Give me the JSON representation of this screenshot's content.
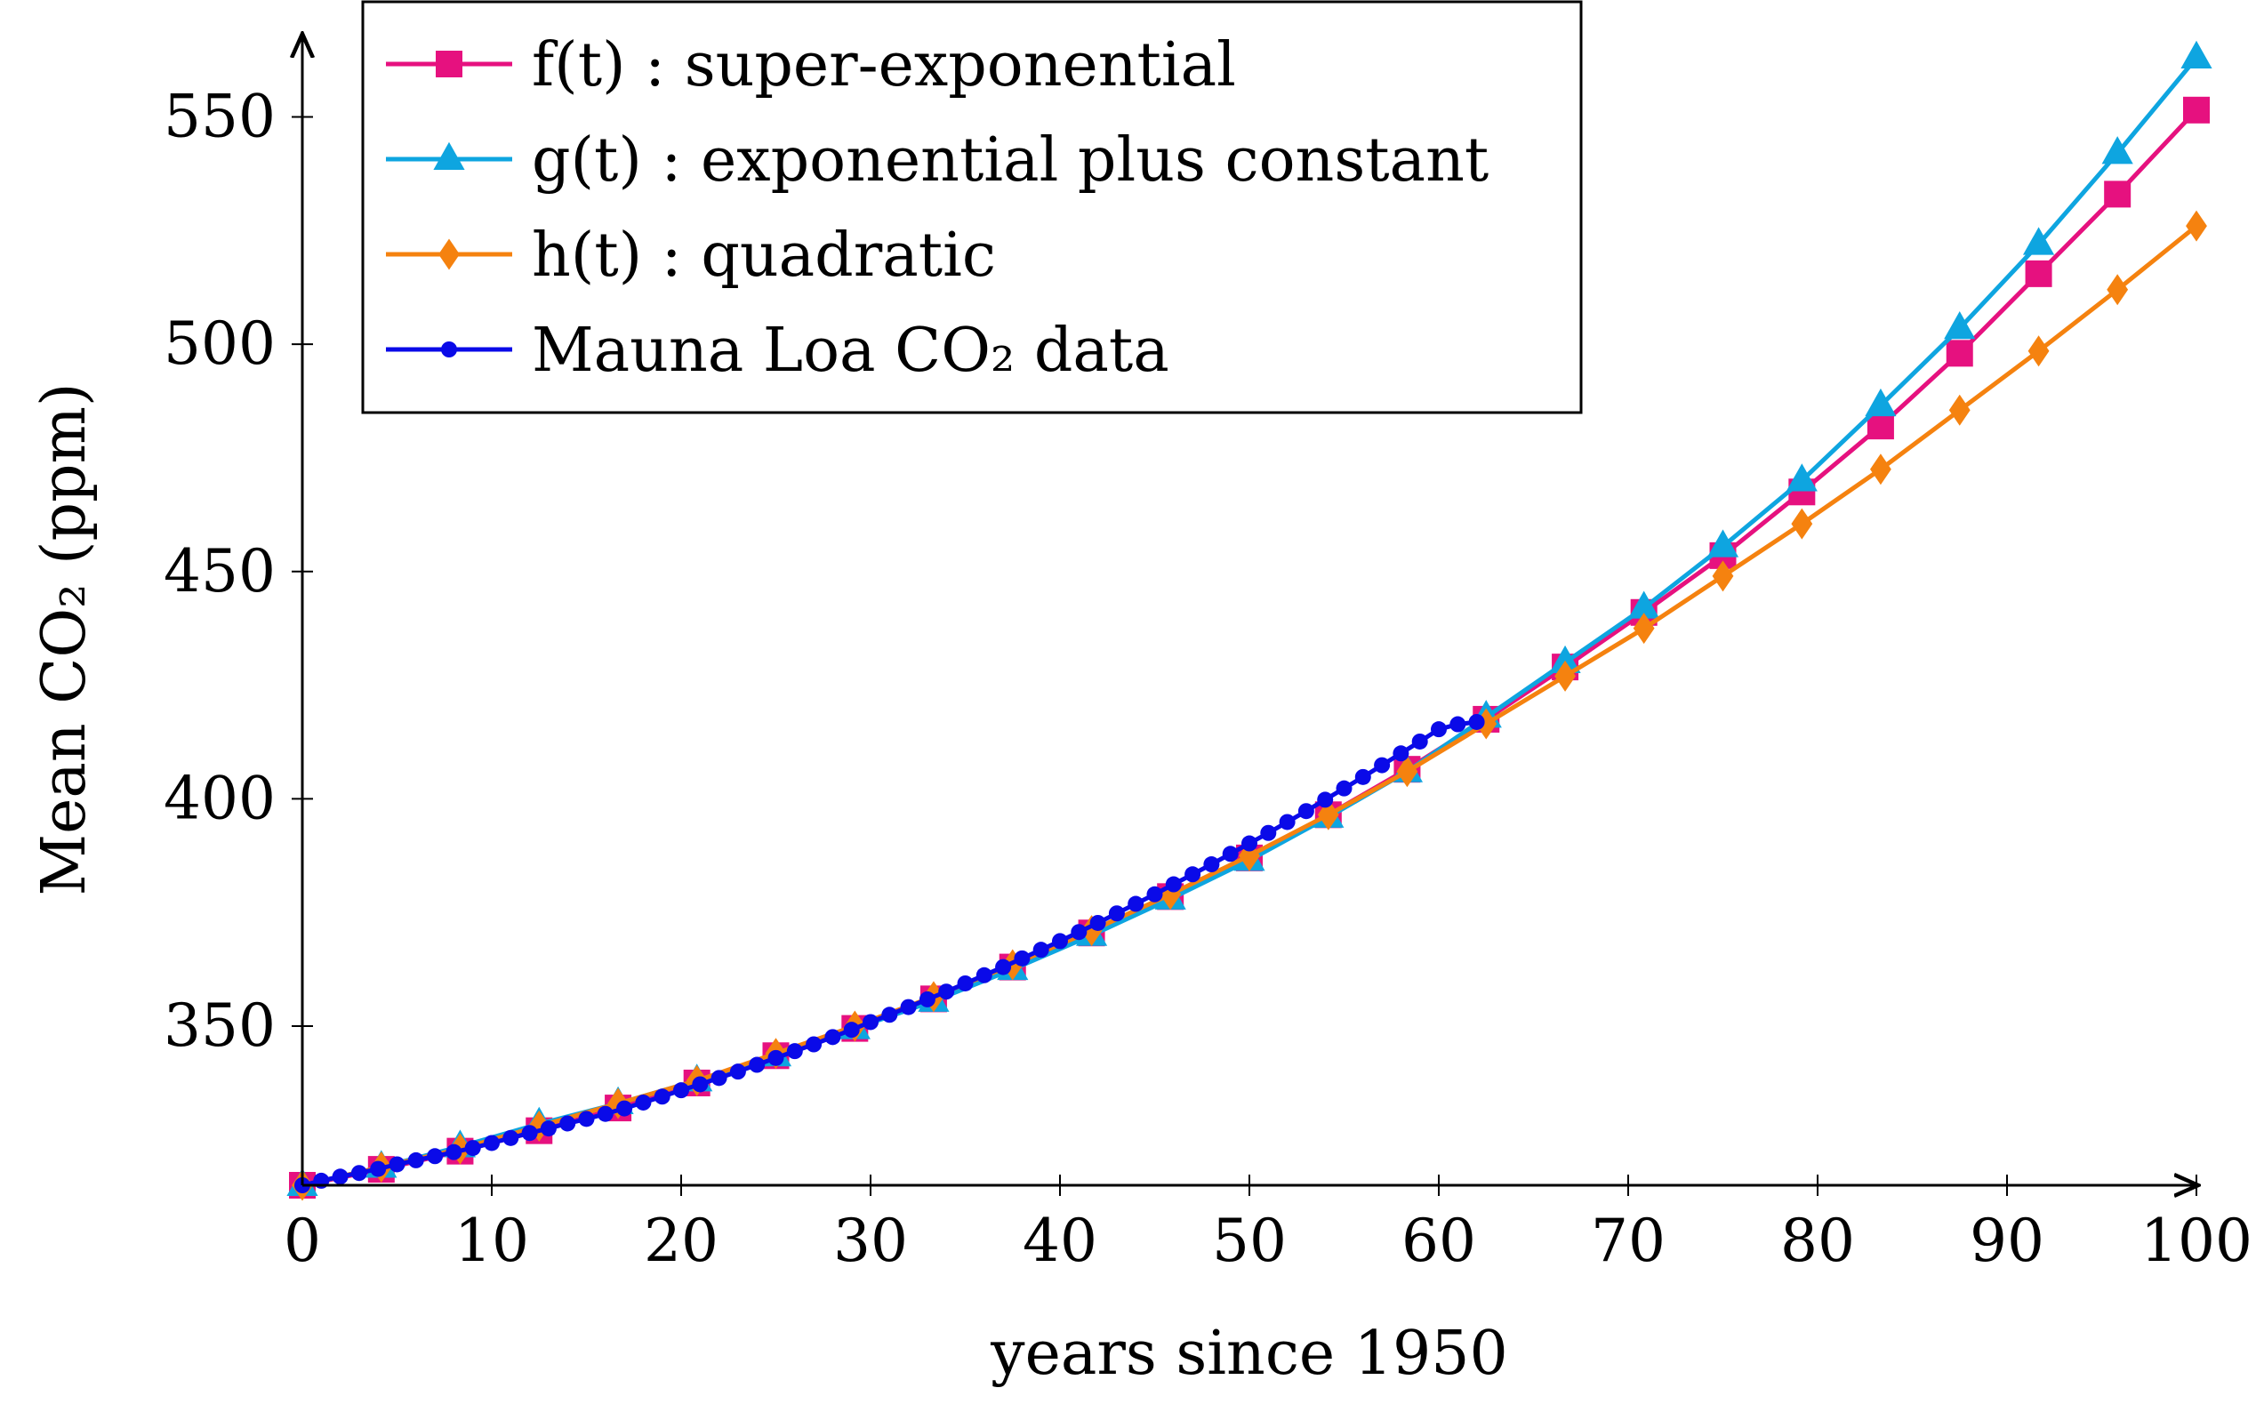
{
  "chart_data": {
    "type": "line",
    "xlabel": "years since 1950",
    "ylabel": "Mean CO₂ (ppm)",
    "xlim": [
      0,
      100
    ],
    "ylim": [
      315,
      563
    ],
    "xticks": [
      0,
      10,
      20,
      30,
      40,
      50,
      60,
      70,
      80,
      90,
      100
    ],
    "yticks": [
      350,
      400,
      450,
      500,
      550
    ],
    "grid": false,
    "legend_position": "top-left",
    "series": [
      {
        "name": "f(t) : super-exponential",
        "color": "#e6117f",
        "marker": "square",
        "x": [
          0,
          4.17,
          8.33,
          12.5,
          16.67,
          20.83,
          25,
          29.17,
          33.33,
          37.5,
          41.67,
          45.83,
          50,
          54.17,
          58.33,
          62.5,
          66.67,
          70.83,
          75,
          79.17,
          83.33,
          87.5,
          91.67,
          95.83,
          100
        ],
        "values": [
          315,
          318.5,
          322.5,
          327,
          332,
          337.5,
          343.5,
          349.5,
          356,
          363,
          370.5,
          378.5,
          387,
          396.5,
          406.5,
          417.5,
          429,
          441,
          453.5,
          467.5,
          482,
          498,
          515.5,
          533,
          551.5
        ]
      },
      {
        "name": "g(t) : exponential plus constant",
        "color": "#0ea5e0",
        "marker": "triangle",
        "x": [
          0,
          4.17,
          8.33,
          12.5,
          16.67,
          20.83,
          25,
          29.17,
          33.33,
          37.5,
          41.67,
          45.83,
          50,
          54.17,
          58.33,
          62.5,
          66.67,
          70.83,
          75,
          79.17,
          83.33,
          87.5,
          91.67,
          95.83,
          100
        ],
        "values": [
          315,
          319,
          323.5,
          328.5,
          333,
          338,
          343.5,
          349.5,
          355.5,
          362.5,
          370,
          378,
          386.5,
          396,
          406,
          418,
          430,
          442,
          455.5,
          470,
          486.5,
          503.5,
          522,
          542,
          563
        ]
      },
      {
        "name": "h(t) : quadratic",
        "color": "#f5820f",
        "marker": "diamond",
        "x": [
          0,
          4.17,
          8.33,
          12.5,
          16.67,
          20.83,
          25,
          29.17,
          33.33,
          37.5,
          41.67,
          45.83,
          50,
          54.17,
          58.33,
          62.5,
          66.67,
          70.83,
          75,
          79.17,
          83.33,
          87.5,
          91.67,
          95.83,
          100
        ],
        "values": [
          315,
          319,
          323,
          328,
          333,
          338,
          344,
          350,
          356.5,
          363.5,
          371,
          379,
          387.5,
          396.5,
          406,
          416.5,
          427,
          437.5,
          449,
          460.5,
          472.5,
          485.5,
          498.5,
          512,
          526
        ]
      },
      {
        "name": "Mauna Loa CO₂ data",
        "color": "#0a0ae8",
        "marker": "dot",
        "x": [
          0,
          1,
          2,
          3,
          4,
          5,
          6,
          7,
          8,
          9,
          10,
          11,
          12,
          13,
          14,
          15,
          16,
          17,
          18,
          19,
          20,
          21,
          22,
          23,
          24,
          25,
          26,
          27,
          28,
          29,
          30,
          31,
          32,
          33,
          34,
          35,
          36,
          37,
          38,
          39,
          40,
          41,
          42,
          43,
          44,
          45,
          46,
          47,
          48,
          49,
          50,
          51,
          52,
          53,
          54,
          55,
          56,
          57,
          58,
          59,
          60,
          61,
          62
        ],
        "values": [
          315.0,
          316.0,
          316.9,
          317.7,
          318.6,
          319.6,
          320.5,
          321.4,
          322.3,
          323.2,
          324.3,
          325.4,
          326.5,
          327.5,
          328.6,
          329.6,
          330.7,
          331.9,
          333.2,
          334.5,
          335.9,
          337.2,
          338.6,
          340.0,
          341.5,
          343.0,
          344.5,
          346.0,
          347.6,
          349.2,
          350.9,
          352.5,
          354.2,
          355.9,
          357.6,
          359.4,
          361.2,
          363.0,
          364.9,
          366.8,
          368.7,
          370.7,
          372.7,
          374.8,
          376.9,
          379.0,
          381.2,
          383.4,
          385.6,
          387.9,
          390.2,
          392.5,
          394.9,
          397.3,
          399.8,
          402.3,
          404.8,
          407.4,
          410.0,
          412.6,
          415.3,
          416.4,
          416.9
        ]
      }
    ]
  },
  "legend": {
    "items": [
      {
        "label": "f(t) : super-exponential"
      },
      {
        "label": "g(t) : exponential plus constant"
      },
      {
        "label": "h(t) : quadratic"
      },
      {
        "label": "Mauna Loa CO₂ data"
      }
    ]
  }
}
